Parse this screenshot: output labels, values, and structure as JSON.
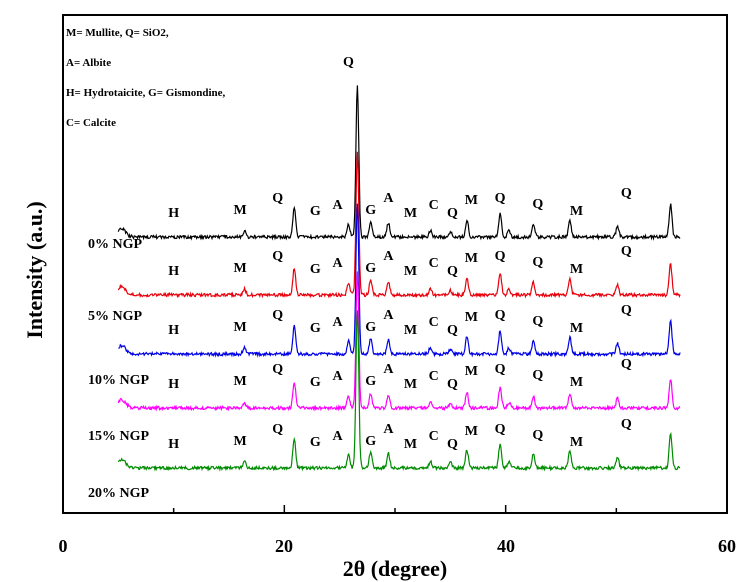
{
  "chart_data": {
    "type": "line",
    "xlabel": "2θ (degree)",
    "ylabel": "Intensity (a.u.)",
    "xlim": [
      0,
      60
    ],
    "x_ticks": [
      0,
      20,
      40,
      60
    ],
    "x_tick_labels": [
      "0",
      "20",
      "40",
      "60"
    ],
    "legend_lines": [
      "M= Mullite,  Q= SiO2,",
      "A= Albite",
      "H= Hydrotaicite,  G= Gismondine,",
      "C= Calcite"
    ],
    "series": [
      {
        "name": "0% NGP",
        "color": "#000000",
        "scale": 1.0
      },
      {
        "name": "5% NGP",
        "color": "#e8000b",
        "scale": 0.95
      },
      {
        "name": "10% NGP",
        "color": "#0000e6",
        "scale": 1.0
      },
      {
        "name": "15% NGP",
        "color": "#ff00ff",
        "scale": 0.9
      },
      {
        "name": "20% NGP",
        "color": "#008c00",
        "scale": 1.05
      }
    ],
    "peaks": [
      {
        "x": 20.9,
        "h": 0.55
      },
      {
        "x": 26.6,
        "h": 2.9
      },
      {
        "x": 25.8,
        "h": 0.25
      },
      {
        "x": 27.8,
        "h": 0.3
      },
      {
        "x": 29.4,
        "h": 0.28
      },
      {
        "x": 36.5,
        "h": 0.33
      },
      {
        "x": 39.5,
        "h": 0.45
      },
      {
        "x": 40.3,
        "h": 0.12
      },
      {
        "x": 42.5,
        "h": 0.15
      },
      {
        "x": 42.5,
        "h": 0.1
      },
      {
        "x": 45.8,
        "h": 0.32
      },
      {
        "x": 50.1,
        "h": 0.2
      },
      {
        "x": 54.9,
        "h": 0.63
      },
      {
        "x": 16.4,
        "h": 0.12
      },
      {
        "x": 33.2,
        "h": 0.12
      },
      {
        "x": 35.0,
        "h": 0.1
      }
    ],
    "peak_labels": [
      "H",
      "M",
      "Q",
      "G",
      "A",
      "G",
      "A",
      "M",
      "C",
      "Q",
      "M",
      "Q",
      "Q",
      "M",
      "Q"
    ]
  }
}
